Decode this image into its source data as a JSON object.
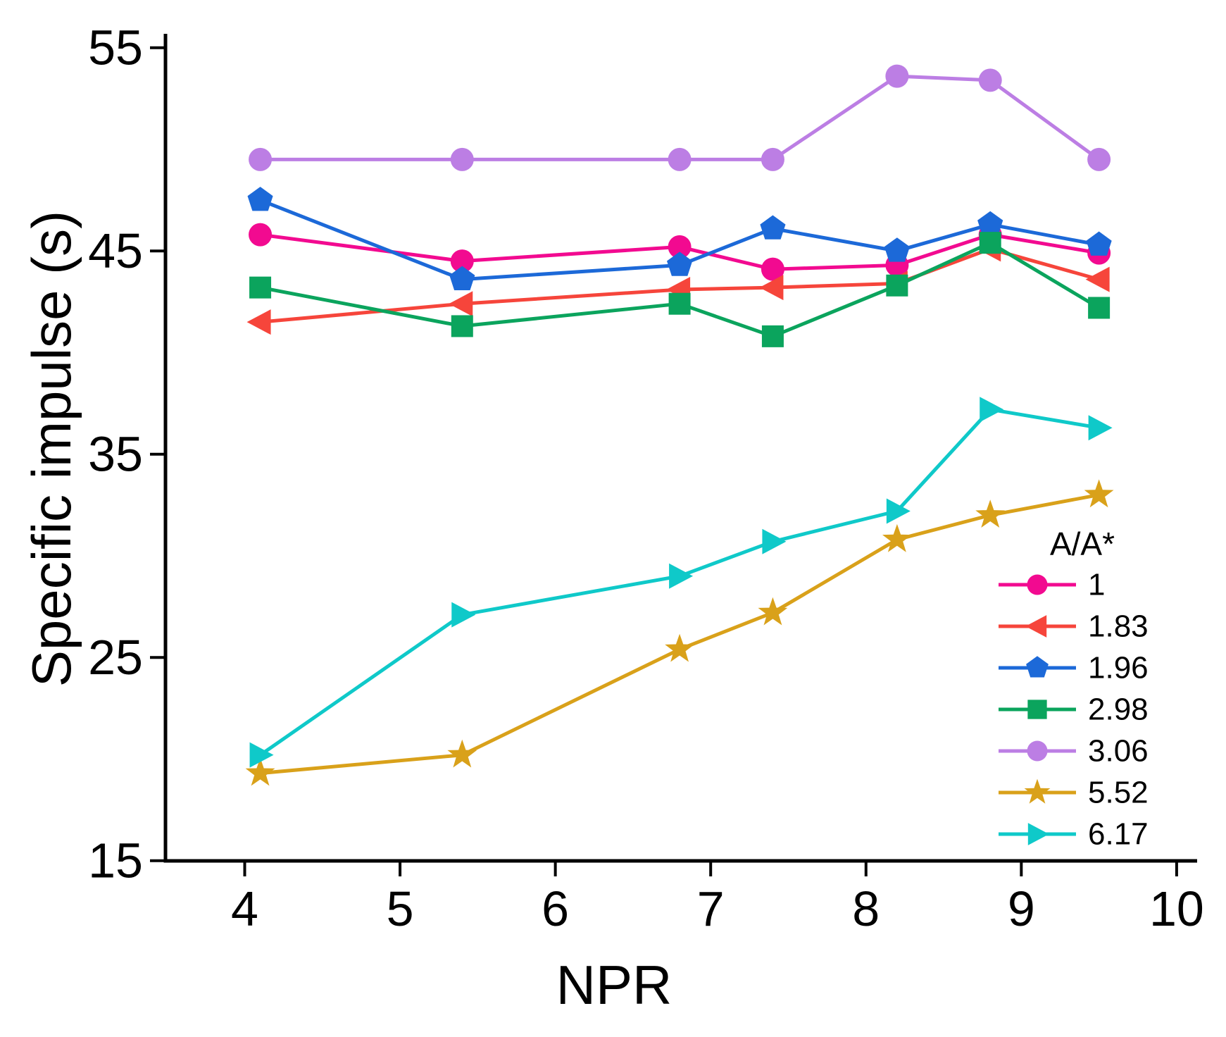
{
  "figure": {
    "background": "#ffffff",
    "axis_color": "#000000",
    "text_color": "#000000"
  },
  "chart_data": {
    "type": "line",
    "title": "",
    "xlabel": "NPR",
    "ylabel": "Specific impulse (s)",
    "xlim": [
      4,
      10
    ],
    "ylim": [
      15,
      55
    ],
    "x_ticks": [
      4,
      5,
      6,
      7,
      8,
      9,
      10
    ],
    "y_ticks": [
      15,
      25,
      35,
      45,
      55
    ],
    "grid": false,
    "legend": {
      "title": "A/A*",
      "position": "lower-right"
    },
    "x": [
      4.1,
      5.4,
      6.8,
      7.4,
      8.2,
      8.8,
      9.5
    ],
    "series": [
      {
        "name": "1",
        "color": "#F20A90",
        "marker": "circle",
        "values": [
          45.8,
          44.5,
          45.2,
          44.1,
          44.3,
          45.8,
          44.9
        ]
      },
      {
        "name": "1.83",
        "color": "#F6453B",
        "marker": "triangle-left",
        "values": [
          41.5,
          42.4,
          43.1,
          43.2,
          43.4,
          45.1,
          43.6
        ]
      },
      {
        "name": "1.96",
        "color": "#1C69D8",
        "marker": "pentagon",
        "values": [
          47.5,
          43.6,
          44.3,
          46.1,
          45.0,
          46.3,
          45.3
        ]
      },
      {
        "name": "2.98",
        "color": "#0BA45D",
        "marker": "square",
        "values": [
          43.2,
          41.3,
          42.4,
          40.8,
          43.3,
          45.4,
          42.2
        ]
      },
      {
        "name": "3.06",
        "color": "#BC7EE4",
        "marker": "circle",
        "values": [
          49.5,
          49.5,
          49.5,
          49.5,
          53.6,
          53.4,
          49.5
        ]
      },
      {
        "name": "5.52",
        "color": "#D9A11A",
        "marker": "star",
        "values": [
          19.3,
          20.2,
          25.4,
          27.2,
          30.8,
          32.0,
          33.0
        ]
      },
      {
        "name": "6.17",
        "color": "#0FC9C9",
        "marker": "triangle-right",
        "values": [
          20.2,
          27.1,
          29.0,
          30.7,
          32.2,
          37.2,
          36.3
        ]
      }
    ]
  }
}
